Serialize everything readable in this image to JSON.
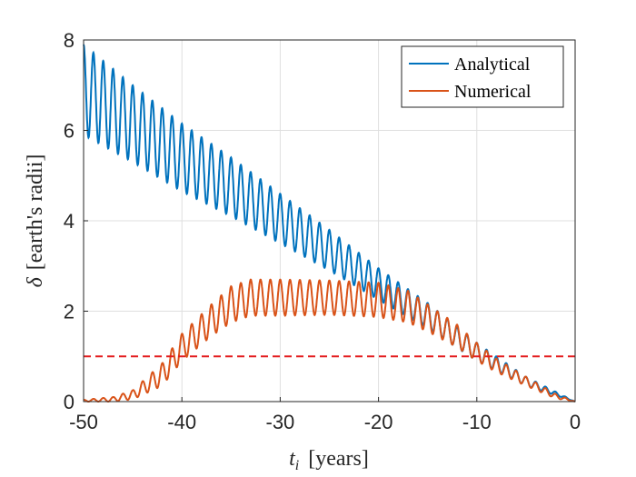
{
  "chart_data": {
    "type": "line",
    "xlabel": "t_i [years]",
    "ylabel": "δ [earth's radii]",
    "xlabel_var": "t",
    "xlabel_sub": "i",
    "xlabel_unit": "[years]",
    "ylabel_var": "δ",
    "ylabel_unit": "[earth's radii]",
    "xlim": [
      -50,
      0
    ],
    "ylim": [
      0,
      8
    ],
    "xticks": [
      "-50",
      "-40",
      "-30",
      "-20",
      "-10",
      "0"
    ],
    "yticks": [
      "0",
      "2",
      "4",
      "6",
      "8"
    ],
    "grid": true,
    "legend_position": "top-right",
    "oscillation_period_years": 1,
    "series": [
      {
        "name": "Analytical",
        "color": "#0072BD",
        "style": "solid",
        "x": [
          -50,
          -45,
          -40,
          -35,
          -30,
          -25,
          -20,
          -15,
          -10,
          -5,
          0
        ],
        "mean": [
          6.9,
          6.15,
          5.4,
          4.75,
          4.05,
          3.35,
          2.6,
          1.9,
          1.1,
          0.45,
          0.0
        ],
        "amplitude": [
          1.0,
          0.85,
          0.75,
          0.65,
          0.55,
          0.45,
          0.35,
          0.28,
          0.2,
          0.1,
          0.0
        ]
      },
      {
        "name": "Numerical",
        "color": "#D95319",
        "style": "solid",
        "x": [
          -50,
          -47,
          -45,
          -42,
          -40,
          -37,
          -35,
          -33,
          -30,
          -25,
          -20,
          -17,
          -15,
          -12,
          -10,
          -8,
          -5,
          -2,
          0
        ],
        "mean": [
          0.02,
          0.05,
          0.15,
          0.6,
          1.2,
          1.8,
          2.15,
          2.3,
          2.3,
          2.3,
          2.25,
          2.1,
          1.85,
          1.45,
          1.1,
          0.8,
          0.45,
          0.12,
          0.0
        ],
        "amplitude": [
          0.02,
          0.05,
          0.1,
          0.25,
          0.3,
          0.35,
          0.4,
          0.4,
          0.4,
          0.38,
          0.38,
          0.35,
          0.3,
          0.25,
          0.2,
          0.15,
          0.1,
          0.05,
          0.0
        ]
      },
      {
        "name": "",
        "color": "#E31A1C",
        "style": "dashed",
        "x": [
          -50,
          0
        ],
        "values": [
          1,
          1
        ]
      }
    ]
  }
}
